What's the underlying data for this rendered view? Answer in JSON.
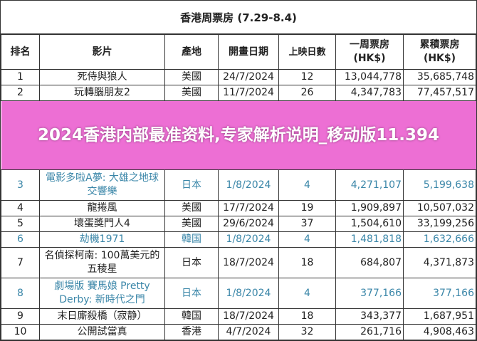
{
  "title": "香港周票房 (7.29-8.4)",
  "headers": [
    "排名",
    "影片",
    "產地",
    "開畫日期",
    "上映日數",
    "一周票房\n(HK$)",
    "累積票房\n(HK$)"
  ],
  "rows": [
    {
      "rank": "1",
      "film": "死侍與狼人",
      "origin": "美國",
      "date": "24/7/2024",
      "days": "12",
      "weekly": "13,044,778",
      "total": "35,685,748"
    },
    {
      "rank": "2",
      "film": "玩轉腦朋友2",
      "origin": "美國",
      "date": "11/7/2024",
      "days": "26",
      "weekly": "4,347,783",
      "total": "77,457,517"
    },
    {
      "rank": "3",
      "film": "電影多啦A夢: 大雄之地球交響樂",
      "origin": "日本",
      "date": "1/8/2024",
      "days": "4",
      "weekly": "4,271,107",
      "total": "5,199,638"
    },
    {
      "rank": "4",
      "film": "龍捲風",
      "origin": "美國",
      "date": "17/7/2024",
      "days": "19",
      "weekly": "1,909,897",
      "total": "10,507,032"
    },
    {
      "rank": "5",
      "film": "壞蛋獎門人4",
      "origin": "美國",
      "date": "29/6/2024",
      "days": "37",
      "weekly": "1,504,610",
      "total": "33,199,256"
    },
    {
      "rank": "6",
      "film": "劫機1971",
      "origin": "韓国",
      "date": "1/8/2024",
      "days": "4",
      "weekly": "1,481,818",
      "total": "1,632,666"
    },
    {
      "rank": "7",
      "film": "名偵探柯南: 100萬美元的五稜星",
      "origin": "日本",
      "date": "18/7/2024",
      "days": "18",
      "weekly": "684,807",
      "total": "4,371,873"
    },
    {
      "rank": "8",
      "film": "劇場版 賽馬娘 Pretty Derby: 新時代之門",
      "origin": "日本",
      "date": "1/8/2024",
      "days": "4",
      "weekly": "377,166",
      "total": "377,166"
    },
    {
      "rank": "9",
      "film": "末日廝殺橋（寂静）",
      "origin": "韓国",
      "date": "18/7/2024",
      "days": "18",
      "weekly": "343,377",
      "total": "1,687,951"
    },
    {
      "rank": "10",
      "film": "公開試當真",
      "origin": "香港",
      "date": "4/7/2024",
      "days": "32",
      "weekly": "261,716",
      "total": "4,908,463"
    }
  ],
  "banner": "2024香港内部最准资料,专家解析说明_移动版11.394",
  "colors": {
    "highlight_text": "#3a86a8",
    "banner": "#e846c8"
  }
}
